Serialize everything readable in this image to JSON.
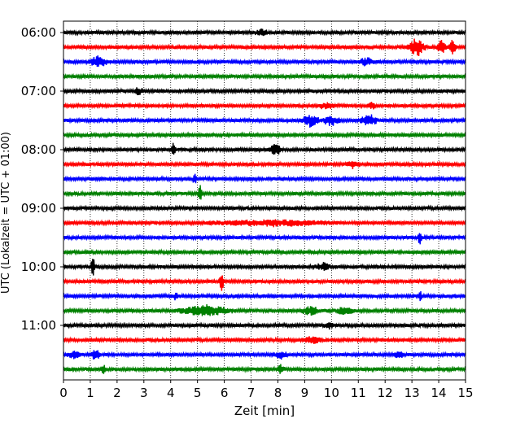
{
  "chart_data": {
    "type": "line",
    "title": "",
    "xlabel": "Zeit  [min]",
    "ylabel": "UTC (Lokalzeit = UTC + 01:00)",
    "xlim": [
      0,
      15
    ],
    "x_ticks": [
      0,
      1,
      2,
      3,
      4,
      5,
      6,
      7,
      8,
      9,
      10,
      11,
      12,
      13,
      14,
      15
    ],
    "y_tick_labels": [
      "06:00",
      "07:00",
      "08:00",
      "09:00",
      "10:00",
      "11:00"
    ],
    "grid": "vertical dotted",
    "line_colors": [
      "#000000",
      "#ff0000",
      "#0000ff",
      "#008000"
    ],
    "traces": [
      {
        "start": "06:00",
        "color": "#000000",
        "events": [
          [
            7.4,
            0.3,
            3
          ]
        ]
      },
      {
        "start": "06:15",
        "color": "#ff0000",
        "events": [
          [
            13.1,
            0.3,
            9
          ],
          [
            13.3,
            0.3,
            5
          ],
          [
            14.1,
            0.2,
            8
          ],
          [
            14.5,
            0.2,
            8
          ]
        ]
      },
      {
        "start": "06:30",
        "color": "#0000ff",
        "events": [
          [
            1.3,
            0.4,
            6
          ],
          [
            11.3,
            0.4,
            4
          ]
        ]
      },
      {
        "start": "06:45",
        "color": "#008000",
        "events": []
      },
      {
        "start": "07:00",
        "color": "#000000",
        "events": [
          [
            2.8,
            0.2,
            4
          ]
        ]
      },
      {
        "start": "07:15",
        "color": "#ff0000",
        "events": [
          [
            9.8,
            0.4,
            3
          ],
          [
            11.5,
            0.2,
            4
          ]
        ]
      },
      {
        "start": "07:30",
        "color": "#0000ff",
        "events": [
          [
            9.2,
            0.4,
            7
          ],
          [
            10.0,
            0.4,
            6
          ],
          [
            11.4,
            0.4,
            7
          ]
        ]
      },
      {
        "start": "07:45",
        "color": "#008000",
        "events": []
      },
      {
        "start": "08:00",
        "color": "#000000",
        "events": [
          [
            4.1,
            0.1,
            10
          ],
          [
            7.9,
            0.3,
            7
          ]
        ]
      },
      {
        "start": "08:15",
        "color": "#ff0000",
        "events": [
          [
            10.8,
            0.3,
            4
          ]
        ]
      },
      {
        "start": "08:30",
        "color": "#0000ff",
        "events": [
          [
            4.9,
            0.1,
            6
          ]
        ]
      },
      {
        "start": "08:45",
        "color": "#008000",
        "events": [
          [
            5.1,
            0.1,
            9
          ]
        ]
      },
      {
        "start": "09:00",
        "color": "#000000",
        "events": []
      },
      {
        "start": "09:15",
        "color": "#ff0000",
        "events": [
          [
            7.8,
            2.8,
            3
          ]
        ]
      },
      {
        "start": "09:30",
        "color": "#0000ff",
        "events": [
          [
            13.3,
            0.1,
            8
          ]
        ]
      },
      {
        "start": "09:45",
        "color": "#008000",
        "events": []
      },
      {
        "start": "10:00",
        "color": "#000000",
        "events": [
          [
            1.1,
            0.1,
            12
          ],
          [
            9.7,
            0.4,
            4
          ]
        ]
      },
      {
        "start": "10:15",
        "color": "#ff0000",
        "events": [
          [
            5.9,
            0.1,
            12
          ]
        ]
      },
      {
        "start": "10:30",
        "color": "#0000ff",
        "events": [
          [
            4.2,
            0.1,
            5
          ],
          [
            13.3,
            0.1,
            5
          ]
        ]
      },
      {
        "start": "10:45",
        "color": "#008000",
        "events": [
          [
            5.3,
            1.2,
            6
          ],
          [
            9.2,
            0.4,
            5
          ],
          [
            10.5,
            0.4,
            4
          ]
        ]
      },
      {
        "start": "11:00",
        "color": "#000000",
        "events": [
          [
            9.9,
            0.2,
            4
          ]
        ]
      },
      {
        "start": "11:15",
        "color": "#ff0000",
        "events": [
          [
            9.3,
            0.4,
            4
          ]
        ]
      },
      {
        "start": "11:30",
        "color": "#0000ff",
        "events": [
          [
            0.4,
            0.3,
            4
          ],
          [
            1.2,
            0.2,
            7
          ],
          [
            8.1,
            0.3,
            4
          ],
          [
            12.5,
            0.2,
            4
          ]
        ]
      },
      {
        "start": "11:45",
        "color": "#008000",
        "events": [
          [
            1.5,
            0.1,
            6
          ],
          [
            8.1,
            0.2,
            5
          ]
        ]
      }
    ]
  }
}
